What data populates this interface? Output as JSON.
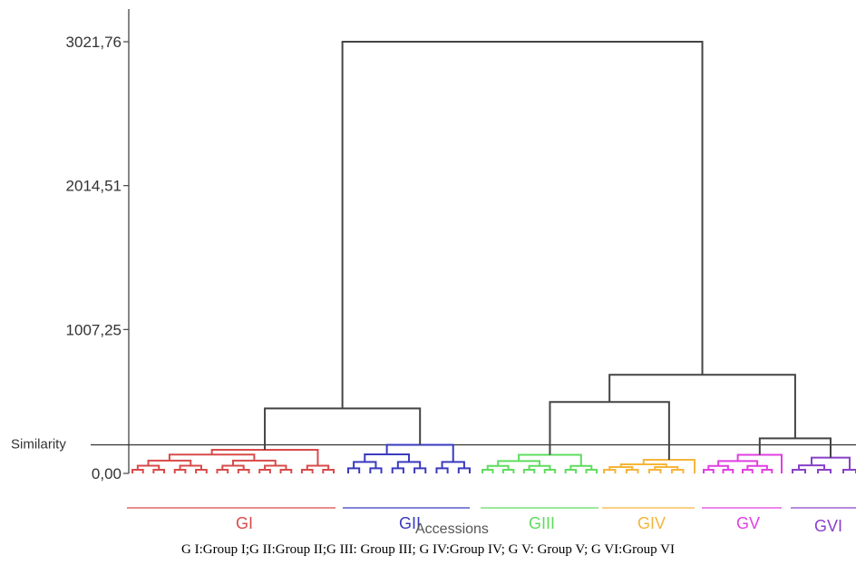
{
  "caption": "G I:Group I;G II:Group II;G III: Group III; G IV:Group IV; G V: Group V; G VI:Group VI",
  "chart_data": {
    "type": "dendrogram",
    "xlabel": "Accessions",
    "ylim": [
      0,
      3021.76
    ],
    "yticks": [
      "0,00",
      "1007,25",
      "2014,51",
      "3021,76"
    ],
    "ytick_values": [
      0,
      1007.25,
      2014.51,
      3021.76
    ],
    "similarity_line": {
      "label": "Similarity",
      "value": 200
    },
    "colors": {
      "axis": "#444444",
      "upper": "#444444",
      "GI": "#d94a4a",
      "GII": "#3a3ac0",
      "GIII": "#5fdc5f",
      "GIV": "#f5b53a",
      "GV": "#e040e0",
      "GVI": "#8a40c8"
    },
    "groups": [
      {
        "key": "GI",
        "label": "GI",
        "leaves": 20,
        "height": 165
      },
      {
        "key": "GII",
        "label": "GII",
        "leaves": 12,
        "height": 200
      },
      {
        "key": "GIII",
        "label": "GIII",
        "leaves": 12,
        "height": 130
      },
      {
        "key": "GIV",
        "label": "GIV",
        "leaves": 9,
        "height": 95
      },
      {
        "key": "GV",
        "label": "GV",
        "leaves": 9,
        "height": 130
      },
      {
        "key": "GVI",
        "label": "GVI",
        "leaves": 6,
        "height": 110
      }
    ],
    "merges": [
      {
        "left": "GI",
        "right": "GII",
        "height": 455
      },
      {
        "left": "GIII",
        "right": "GIV",
        "height": 500
      },
      {
        "left": "GV",
        "right": "GVI",
        "height": 245
      },
      {
        "left": "GIII+GIV",
        "right": "GV+GVI",
        "height": 690
      },
      {
        "left": "GI+GII",
        "right": "GIII+GIV+GV+GVI",
        "height": 3021.76
      }
    ]
  }
}
